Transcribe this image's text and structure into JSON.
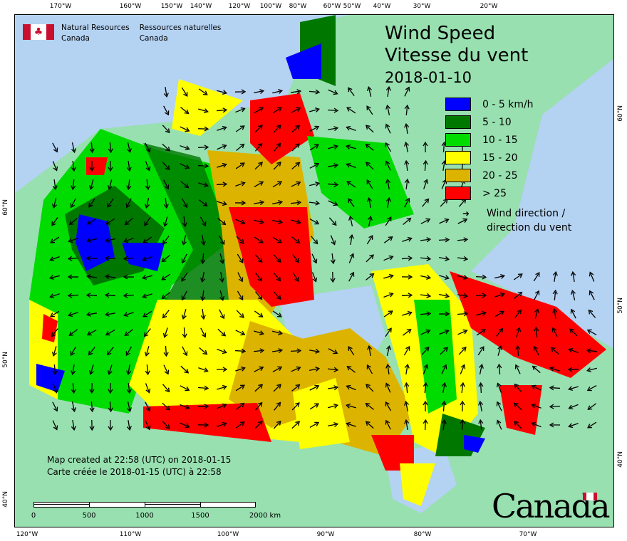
{
  "title": {
    "en": "Wind Speed",
    "fr": "Vitesse du vent",
    "date": "2018-01-10"
  },
  "agency": {
    "en_line1": "Natural Resources",
    "en_line2": "Canada",
    "fr_line1": "Ressources naturelles",
    "fr_line2": "Canada"
  },
  "legend": {
    "items": [
      {
        "label": "0 - 5 km/h",
        "color": "#0000ff"
      },
      {
        "label": "5 - 10",
        "color": "#007800"
      },
      {
        "label": "10 - 15",
        "color": "#00dc00"
      },
      {
        "label": "15 - 20",
        "color": "#ffff00"
      },
      {
        "label": "20 - 25",
        "color": "#dcb400"
      },
      {
        "label": "> 25",
        "color": "#ff0000"
      }
    ],
    "wind_en": "Wind direction /",
    "wind_fr": "direction du vent"
  },
  "credit": {
    "en": "Map created at 22:58 (UTC) on 2018-01-15",
    "fr": "Carte créée le 2018-01-15 (UTC) à 22:58"
  },
  "scale_bar": {
    "labels": [
      "0",
      "500",
      "1000",
      "1500",
      "2000 km"
    ]
  },
  "wordmark": "Canada",
  "axes": {
    "top": [
      "170°W",
      "160°W",
      "150°W",
      "140°W",
      "120°W",
      "100°W",
      "80°W",
      "60°W",
      "50°W",
      "40°W",
      "30°W",
      "20°W"
    ],
    "bottom": [
      "120°W",
      "110°W",
      "100°W",
      "90°W",
      "80°W",
      "70°W"
    ],
    "left": [
      "60°N",
      "50°N",
      "40°N"
    ],
    "right": [
      "60°N",
      "50°N",
      "40°N"
    ]
  },
  "colors": {
    "ocean": "#b4d2f2",
    "land": "#98e0b0"
  }
}
